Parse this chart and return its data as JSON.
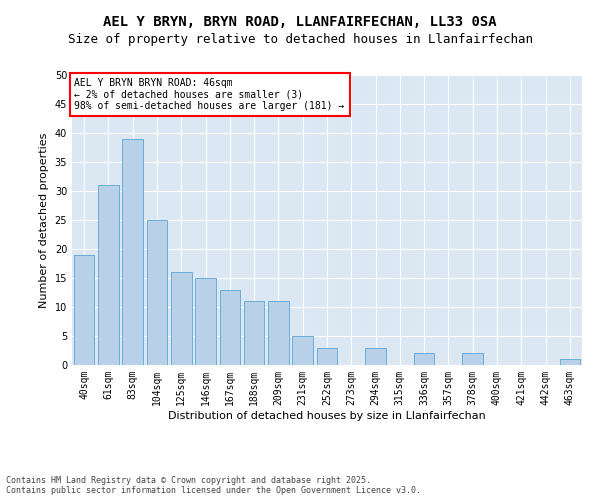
{
  "title1": "AEL Y BRYN, BRYN ROAD, LLANFAIRFECHAN, LL33 0SA",
  "title2": "Size of property relative to detached houses in Llanfairfechan",
  "xlabel": "Distribution of detached houses by size in Llanfairfechan",
  "ylabel": "Number of detached properties",
  "categories": [
    "40sqm",
    "61sqm",
    "83sqm",
    "104sqm",
    "125sqm",
    "146sqm",
    "167sqm",
    "188sqm",
    "209sqm",
    "231sqm",
    "252sqm",
    "273sqm",
    "294sqm",
    "315sqm",
    "336sqm",
    "357sqm",
    "378sqm",
    "400sqm",
    "421sqm",
    "442sqm",
    "463sqm"
  ],
  "values": [
    19,
    31,
    39,
    25,
    16,
    15,
    13,
    11,
    11,
    5,
    3,
    0,
    3,
    0,
    2,
    0,
    2,
    0,
    0,
    0,
    1
  ],
  "bar_color": "#b8d0e8",
  "bar_edge_color": "#6aaed6",
  "annotation_text": "AEL Y BRYN BRYN ROAD: 46sqm\n← 2% of detached houses are smaller (3)\n98% of semi-detached houses are larger (181) →",
  "annotation_box_color": "white",
  "annotation_box_edge_color": "red",
  "footer": "Contains HM Land Registry data © Crown copyright and database right 2025.\nContains public sector information licensed under the Open Government Licence v3.0.",
  "ylim": [
    0,
    50
  ],
  "yticks": [
    0,
    5,
    10,
    15,
    20,
    25,
    30,
    35,
    40,
    45,
    50
  ],
  "plot_background": "#dbe8f4",
  "title1_fontsize": 10,
  "title2_fontsize": 9,
  "axis_label_fontsize": 8,
  "tick_fontsize": 7,
  "annotation_fontsize": 7,
  "footer_fontsize": 6
}
